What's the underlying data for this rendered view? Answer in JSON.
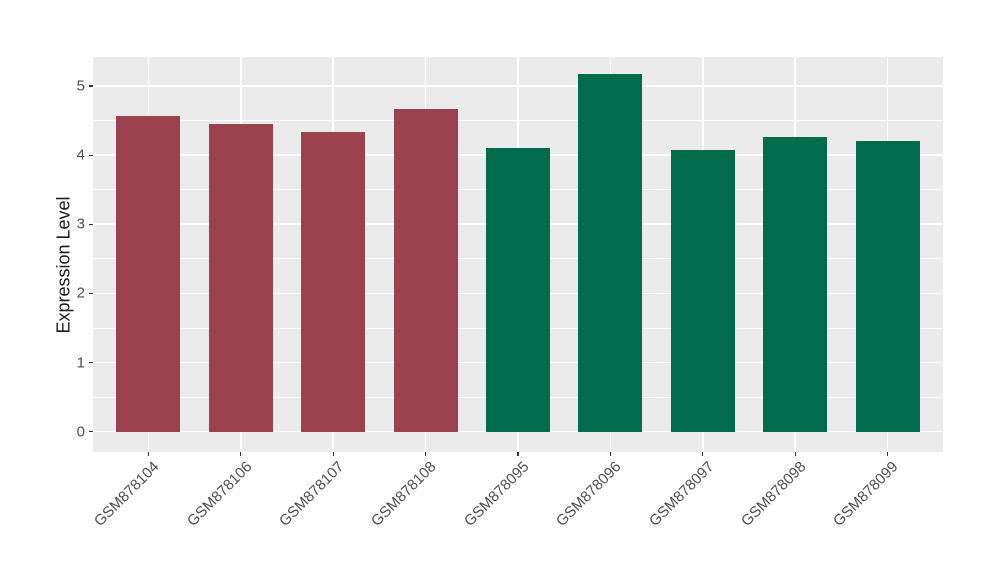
{
  "figure": {
    "background": "#FFFFFF",
    "panel_background": "#EBEBEB",
    "grid_color": "#FFFFFF",
    "axis_text_color": "#4D4D4D",
    "axis_title_color": "#1A1A1A",
    "tick_mark_color": "#333333"
  },
  "chart_data": {
    "type": "bar",
    "title": "",
    "xlabel": "",
    "ylabel": "Expression Level",
    "categories": [
      "GSM878104",
      "GSM878106",
      "GSM878107",
      "GSM878108",
      "GSM878095",
      "GSM878096",
      "GSM878097",
      "GSM878098",
      "GSM878099"
    ],
    "values": [
      4.56,
      4.45,
      4.33,
      4.67,
      4.11,
      5.17,
      4.07,
      4.26,
      4.21
    ],
    "bar_colors": [
      "#9A4250",
      "#9A4250",
      "#9A4250",
      "#9A4250",
      "#026B49",
      "#026B49",
      "#026B49",
      "#026B49",
      "#026B49"
    ],
    "y_ticks": [
      0,
      1,
      2,
      3,
      4,
      5
    ],
    "y_minor_ticks": [
      0.5,
      1.5,
      2.5,
      3.5,
      4.5
    ],
    "ylim": [
      -0.26,
      5.43
    ],
    "grid": true,
    "legend_position": "none",
    "x_label_angle": 45
  }
}
